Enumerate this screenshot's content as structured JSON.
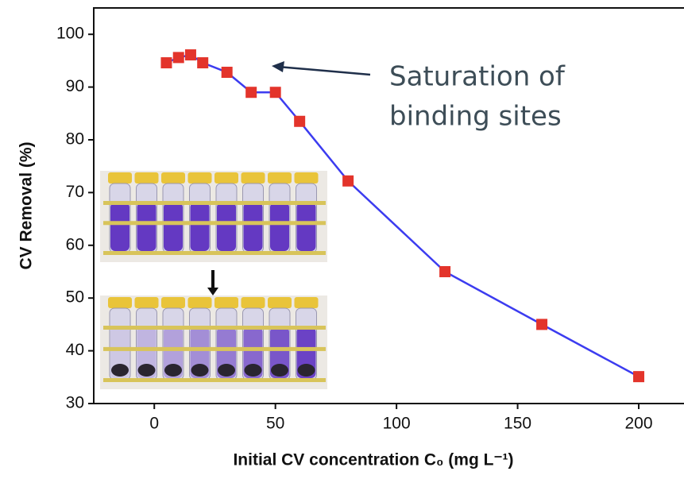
{
  "chart_data": {
    "type": "line",
    "x_label": "Initial CV concentration C₀ (mg L⁻¹)",
    "y_label": "CV Removal (%)",
    "annotation": [
      "Saturation of",
      "binding sites"
    ],
    "x": [
      5,
      10,
      15,
      20,
      30,
      40,
      50,
      60,
      80,
      120,
      160,
      200
    ],
    "series": [
      {
        "color": "#3c3cf0",
        "marker_color": "#e3342b",
        "values": [
          94.6,
          95.6,
          96.1,
          94.6,
          92.8,
          89.0,
          89.0,
          83.5,
          72.2,
          55.0,
          45.0,
          35.1
        ]
      }
    ],
    "xlim": [
      -25,
      220
    ],
    "ylim": [
      30,
      105
    ],
    "xticks": [
      0,
      50,
      100,
      150,
      200
    ],
    "yticks": [
      30,
      40,
      50,
      60,
      70,
      80,
      90,
      100
    ]
  }
}
